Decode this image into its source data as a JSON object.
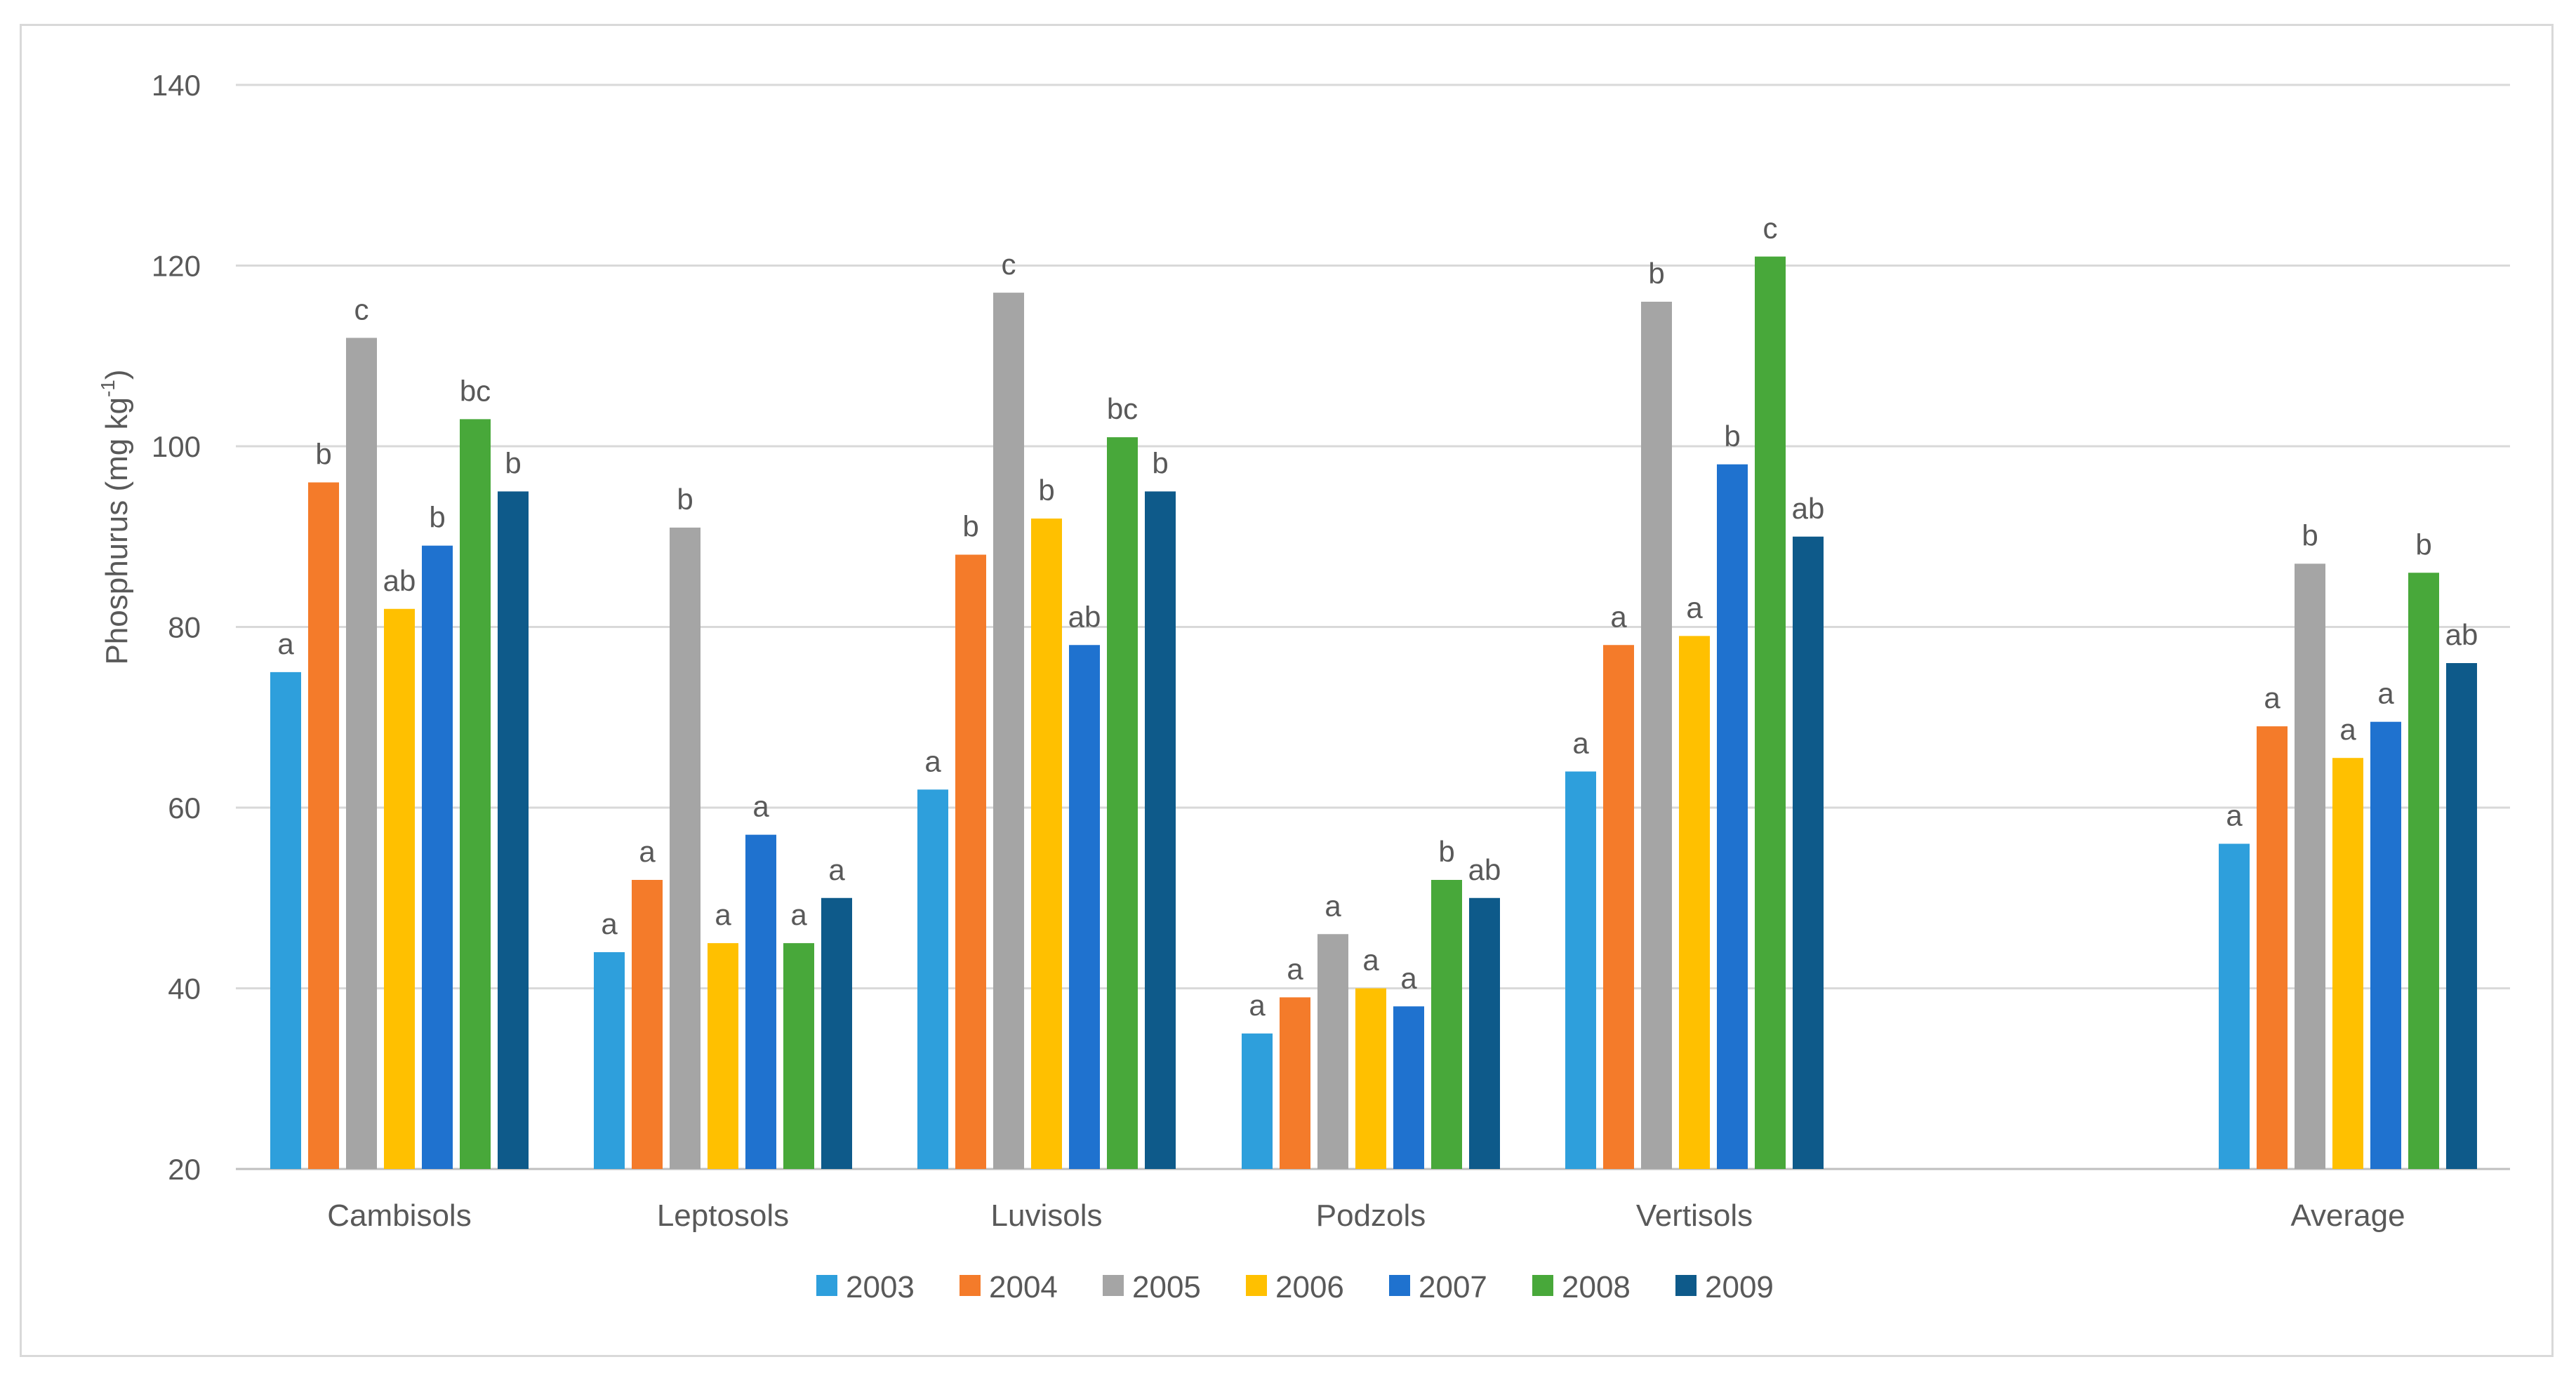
{
  "chart_data": {
    "type": "bar",
    "title": "",
    "xlabel": "",
    "ylabel": "Phosphurus (mg kg",
    "ylabel_superscript": "-1",
    "ylabel_suffix": ")",
    "ylim": [
      20,
      140
    ],
    "yticks": [
      20,
      40,
      60,
      80,
      100,
      120,
      140
    ],
    "grid": true,
    "legend_position": "bottom-center",
    "categories": [
      "Cambisols",
      "Leptosols",
      "Luvisols",
      "Podzols",
      "Vertisols",
      "Average"
    ],
    "series": [
      {
        "name": "2003",
        "color": "#2e9fdc",
        "values": [
          75,
          44,
          62,
          35,
          64,
          56
        ],
        "letters": [
          "a",
          "a",
          "a",
          "a",
          "a",
          "a"
        ]
      },
      {
        "name": "2004",
        "color": "#f47b2a",
        "values": [
          96,
          52,
          88,
          39,
          78,
          69
        ],
        "letters": [
          "b",
          "a",
          "b",
          "a",
          "a",
          "a"
        ]
      },
      {
        "name": "2005",
        "color": "#a5a5a5",
        "values": [
          112,
          91,
          117,
          46,
          116,
          87
        ],
        "letters": [
          "c",
          "b",
          "c",
          "a",
          "b",
          "b"
        ]
      },
      {
        "name": "2006",
        "color": "#ffc000",
        "values": [
          82,
          45,
          92,
          40,
          79,
          65.5
        ],
        "letters": [
          "ab",
          "a",
          "b",
          "a",
          "a",
          "a"
        ]
      },
      {
        "name": "2007",
        "color": "#1f72cf",
        "values": [
          89,
          57,
          78,
          38,
          98,
          69.5
        ],
        "letters": [
          "b",
          "a",
          "ab",
          "a",
          "b",
          "a"
        ]
      },
      {
        "name": "2008",
        "color": "#48a83a",
        "values": [
          103,
          45,
          101,
          52,
          121,
          86
        ],
        "letters": [
          "bc",
          "a",
          "bc",
          "b",
          "c",
          "b"
        ]
      },
      {
        "name": "2009",
        "color": "#0e5a8a",
        "values": [
          95,
          50,
          95,
          50,
          90,
          76
        ],
        "letters": [
          "b",
          "a",
          "b",
          "ab",
          "ab",
          "ab"
        ]
      }
    ]
  }
}
